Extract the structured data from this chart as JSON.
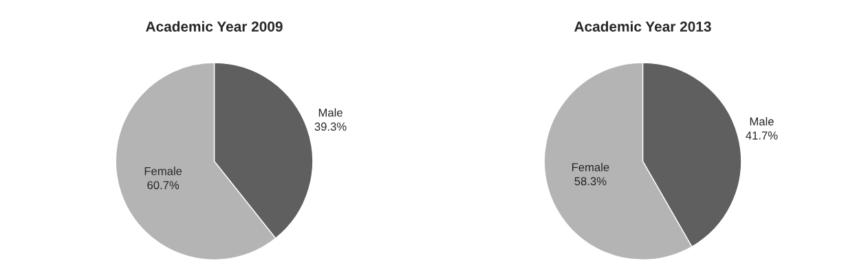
{
  "chart_data": [
    {
      "type": "pie",
      "title": "Academic Year 2009",
      "categories": [
        "Male",
        "Female"
      ],
      "values": [
        39.3,
        60.7
      ],
      "value_labels": [
        "39.3%",
        "60.7%"
      ],
      "colors": [
        "#5f5f5f",
        "#b4b4b4"
      ]
    },
    {
      "type": "pie",
      "title": "Academic Year 2013",
      "categories": [
        "Male",
        "Female"
      ],
      "values": [
        41.7,
        58.3
      ],
      "value_labels": [
        "41.7%",
        "58.3%"
      ],
      "colors": [
        "#5f5f5f",
        "#b4b4b4"
      ]
    }
  ]
}
